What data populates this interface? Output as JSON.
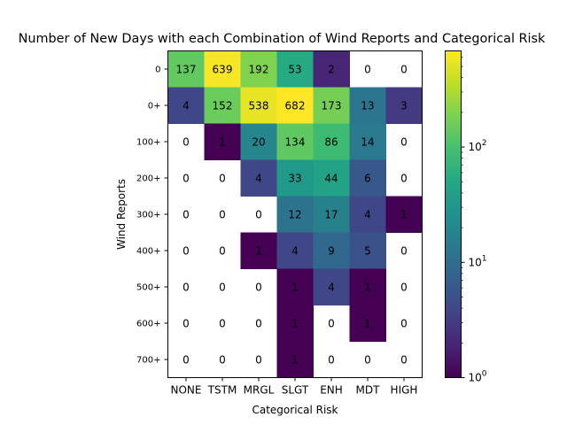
{
  "chart_data": {
    "type": "heatmap",
    "title": "Number of New Days with each Combination of Wind Reports and Categorical Risk",
    "xlabel": "Categorical Risk",
    "ylabel": "Wind Reports",
    "x_categories": [
      "NONE",
      "TSTM",
      "MRGL",
      "SLGT",
      "ENH",
      "MDT",
      "HIGH"
    ],
    "y_categories": [
      "0",
      "0+",
      "100+",
      "200+",
      "300+",
      "400+",
      "500+",
      "600+",
      "700+"
    ],
    "values": [
      [
        137,
        639,
        192,
        53,
        2,
        0,
        0
      ],
      [
        4,
        152,
        538,
        682,
        173,
        13,
        3
      ],
      [
        0,
        1,
        20,
        134,
        86,
        14,
        0
      ],
      [
        0,
        0,
        4,
        33,
        44,
        6,
        0
      ],
      [
        0,
        0,
        0,
        12,
        17,
        4,
        1
      ],
      [
        0,
        0,
        1,
        4,
        9,
        5,
        0
      ],
      [
        0,
        0,
        0,
        1,
        4,
        1,
        0
      ],
      [
        0,
        0,
        0,
        1,
        0,
        1,
        0
      ],
      [
        0,
        0,
        0,
        1,
        0,
        0,
        0
      ]
    ],
    "zero_cells": "blank (white)",
    "colorbar": {
      "scale": "log",
      "range": [
        1,
        682
      ],
      "colormap": "viridis",
      "tick_labels": [
        "10^0",
        "10^1",
        "10^2"
      ]
    },
    "grid": false,
    "colors": {
      "low": "#440154",
      "high": "#fde725",
      "text": "#000000"
    }
  }
}
